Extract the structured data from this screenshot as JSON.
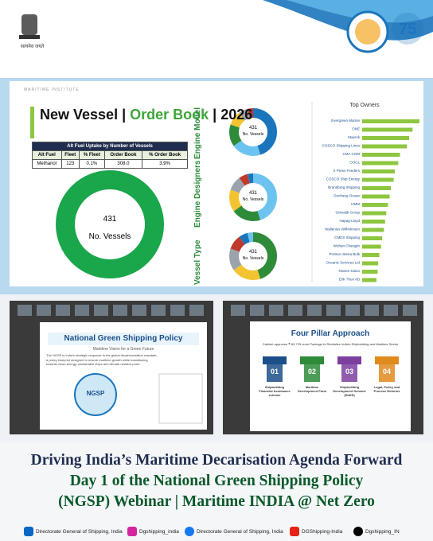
{
  "header": {
    "emblem_motto": "सत्यमेव जयते"
  },
  "dashboard": {
    "institute": "MARITIME INSTITUTE",
    "title_part1": "New Vessel |",
    "title_part2": "Order Book",
    "title_part3": "| 2026",
    "table": {
      "title": "Alt Fuel Uptake by Number of Vessels",
      "columns": [
        "Alt Fuel",
        "Fleet",
        "% Fleet",
        "Order Book",
        "% Order Book"
      ],
      "rows": [
        [
          "Methanol",
          "123",
          "0.1%",
          "308.0",
          "3.9%"
        ]
      ]
    },
    "main_donut": {
      "value": "431",
      "label": "No. Vessels"
    },
    "section_labels": [
      "Engine Model",
      "Engine Designers",
      "Vessel Type"
    ],
    "small_donuts": [
      {
        "value": "431",
        "label": "No. Vessels"
      },
      {
        "value": "431",
        "label": "No. Vessels"
      },
      {
        "value": "431",
        "label": "No. Vessels"
      }
    ],
    "top_owners": {
      "title": "Top Owners",
      "categories": [
        "Evergreen Marine",
        "ONE",
        "Maersk",
        "COSCO Shipping Lines",
        "CMA CGM",
        "OOCL",
        "X Press Feeders",
        "COSCO Ship Energy",
        "Brandbreg Shipping",
        "Dunhang Ocean",
        "HMM",
        "Grimaldi Group",
        "Hapag-Lloyd",
        "Wallenius Wilhelmsen",
        "CMES Shipping",
        "Wuhan Changjin",
        "Pretson Stena Bulk",
        "Oceanic Services Ltd",
        "Nissen Kaiun",
        "Erik Thun AB"
      ],
      "values": [
        100,
        88,
        82,
        78,
        66,
        63,
        57,
        55,
        50,
        48,
        45,
        42,
        40,
        38,
        35,
        33,
        30,
        28,
        27,
        25
      ],
      "color": "#8dc63f"
    }
  },
  "slide_left": {
    "title": "National Green Shipping Policy",
    "subtitle": "Maritime Vision for a Green Future",
    "body": "The NGSP is India's strategic response to the global decarbonisation mandate, a policy blueprint designed to ensure maritime growth while transitioning towards clean energy, sustainable ships and climate-resilient ports.",
    "center": "NGSP"
  },
  "slide_right": {
    "title": "Four Pillar Approach",
    "intro": "Cabinet approves ₹ 69,725 crore Package to Revitalize India's Shipbuilding and Maritime Sector",
    "pillars": [
      {
        "number": "01",
        "label": "Shipbuilding Financial Assistance scheme"
      },
      {
        "number": "02",
        "label": "Maritime Development Fund"
      },
      {
        "number": "03",
        "label": "Shipbuilding Development Scheme (SbDS)"
      },
      {
        "number": "04",
        "label": "Legal, Policy and Process Reforms"
      }
    ]
  },
  "caption": [
    "Driving India’s Maritime Decarisation Agenda Forward",
    "Day 1 of the National Green Shipping Policy",
    "(NGSP) Webinar | Maritime INDIA @ Net Zero"
  ],
  "footer": [
    "Directorate General of Shipping, India",
    "Dgshipping_india",
    "Directorate General of Shipping, India",
    "DGShipping-India",
    "Dgshipping_IN"
  ]
}
